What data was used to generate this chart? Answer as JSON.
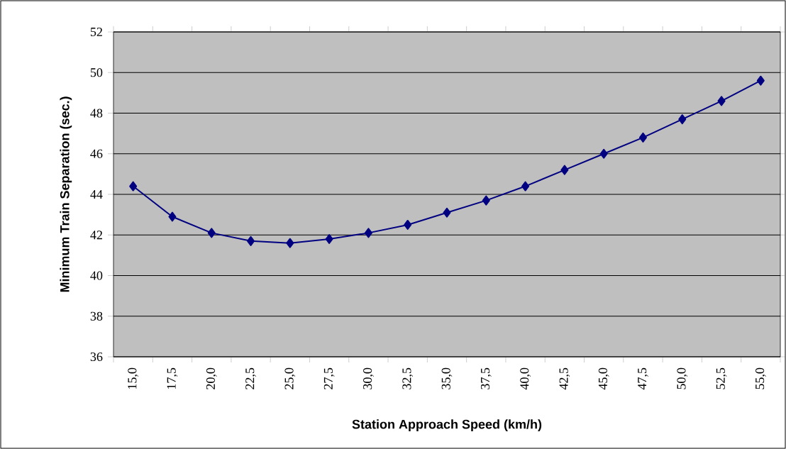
{
  "chart_data": {
    "type": "line",
    "xlabel": "Station Approach Speed (km/h)",
    "ylabel": "Minimum Train Separation (sec.)",
    "categories": [
      "15,0",
      "17,5",
      "20,0",
      "22,5",
      "25,0",
      "27,5",
      "30,0",
      "32,5",
      "35,0",
      "37,5",
      "40,0",
      "42,5",
      "45,0",
      "47,5",
      "50,0",
      "52,5",
      "55,0"
    ],
    "values": [
      44.4,
      42.9,
      42.1,
      41.7,
      41.6,
      41.8,
      42.1,
      42.5,
      43.1,
      43.7,
      44.4,
      45.2,
      46.0,
      46.8,
      47.7,
      48.6,
      49.6
    ],
    "color": "#000080",
    "marker": "diamond",
    "line_style": "solid",
    "grid": "y",
    "ylim": [
      36,
      52
    ],
    "yticks": [
      36,
      38,
      40,
      42,
      44,
      46,
      48,
      50,
      52
    ]
  }
}
